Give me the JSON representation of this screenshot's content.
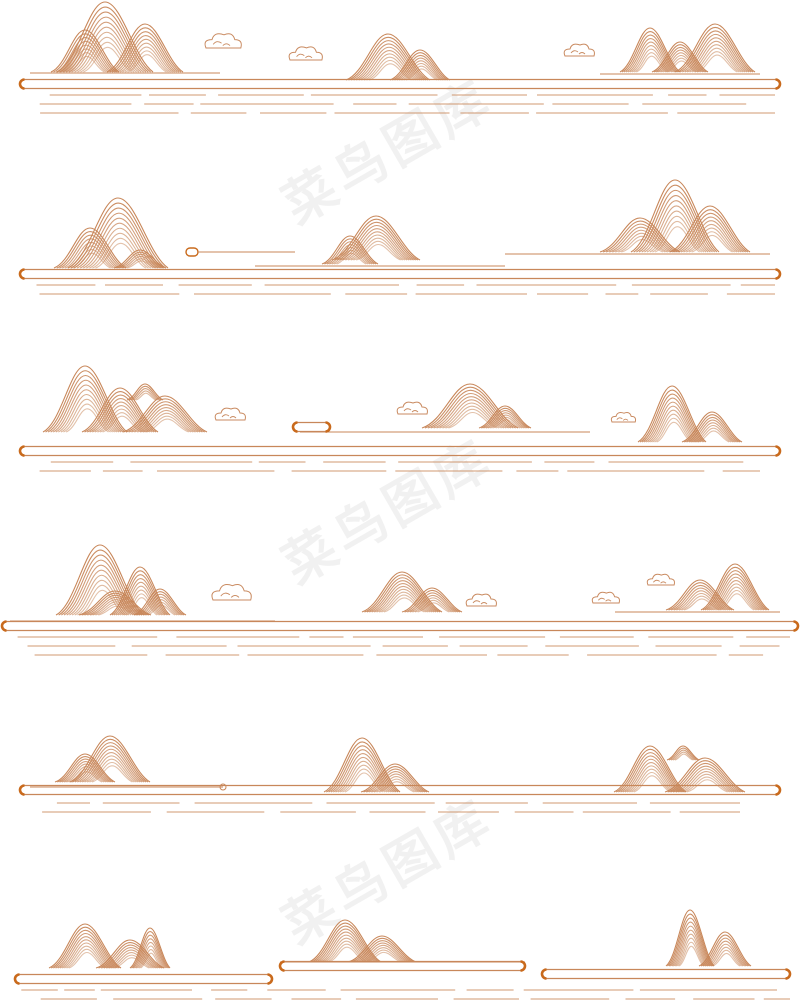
{
  "palette": {
    "line": "#c8875a",
    "accent": "#c96a1c",
    "cloud": "#c98a60",
    "background": "#ffffff"
  },
  "watermark": {
    "text": "菜鸟图库"
  },
  "artwork": {
    "subject": "landscape-line-art",
    "icon_names": [
      "mountain-icon",
      "cloud-icon",
      "scroll-bar-icon",
      "water-line-icon"
    ]
  }
}
